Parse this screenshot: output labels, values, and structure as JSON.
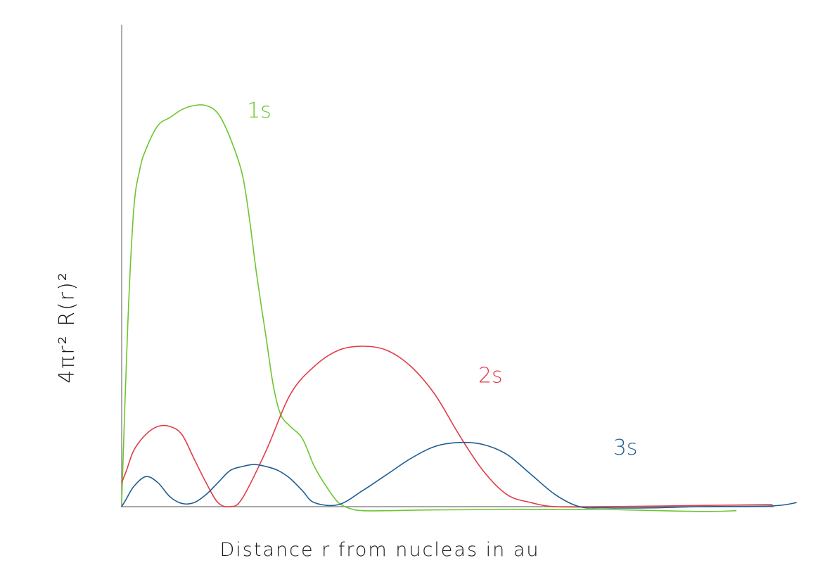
{
  "chart_data": {
    "type": "line",
    "title": "",
    "xlabel": "Distance r from nucleas in au",
    "ylabel": "4πr² R(r)²",
    "xlim": [
      0,
      28
    ],
    "ylim": [
      0,
      1.0
    ],
    "grid": false,
    "legend": "none",
    "series": [
      {
        "name": "1s",
        "color": "#6cc62e",
        "x": [
          0,
          0.25,
          0.5,
          0.75,
          1.0,
          1.5,
          2.0,
          2.5,
          3.0,
          3.5,
          4.0,
          4.5,
          5.0,
          5.3,
          5.6,
          6.0,
          6.3,
          6.6,
          7.0,
          7.5,
          8.0,
          8.5,
          9.0,
          9.5,
          10.0,
          11.0,
          13.0,
          16.0,
          20.0,
          24.0,
          25.5
        ],
        "y": [
          0.01,
          0.45,
          0.74,
          0.84,
          0.89,
          0.95,
          0.97,
          0.99,
          1.0,
          1.0,
          0.98,
          0.92,
          0.83,
          0.72,
          0.58,
          0.42,
          0.3,
          0.23,
          0.2,
          0.17,
          0.1,
          0.05,
          0.01,
          -0.005,
          -0.01,
          -0.01,
          -0.008,
          -0.007,
          -0.007,
          -0.012,
          -0.01
        ]
      },
      {
        "name": "2s",
        "color": "#e23b4a",
        "x": [
          0,
          0.2,
          0.5,
          1.0,
          1.5,
          2.0,
          2.5,
          3.0,
          3.5,
          4.0,
          4.5,
          5.0,
          6.0,
          7.0,
          8.0,
          9.0,
          10.0,
          11.0,
          12.0,
          13.0,
          14.0,
          15.0,
          16.0,
          17.0,
          18.0,
          20.0,
          24.0,
          27.0
        ],
        "y": [
          0.06,
          0.09,
          0.14,
          0.18,
          0.2,
          0.2,
          0.18,
          0.12,
          0.06,
          0.01,
          0.0,
          0.02,
          0.14,
          0.28,
          0.35,
          0.39,
          0.4,
          0.39,
          0.35,
          0.28,
          0.18,
          0.09,
          0.03,
          0.01,
          0.0,
          0.0,
          0.003,
          0.005
        ]
      },
      {
        "name": "3s",
        "color": "#1f5e92",
        "x": [
          0,
          0.2,
          0.5,
          1.0,
          1.5,
          2.0,
          2.5,
          3.0,
          3.5,
          4.0,
          4.5,
          5.0,
          5.5,
          6.0,
          6.5,
          7.0,
          7.5,
          8.0,
          9.0,
          10.0,
          11.0,
          12.0,
          13.0,
          14.0,
          15.0,
          16.0,
          17.0,
          18.0,
          19.0,
          20.0,
          22.0,
          24.0,
          27.0,
          28.0
        ],
        "y": [
          0.0,
          0.02,
          0.05,
          0.075,
          0.06,
          0.025,
          0.008,
          0.01,
          0.03,
          0.06,
          0.09,
          0.1,
          0.105,
          0.1,
          0.09,
          0.07,
          0.04,
          0.01,
          0.005,
          0.04,
          0.08,
          0.12,
          0.15,
          0.16,
          0.155,
          0.13,
          0.08,
          0.03,
          0.0,
          -0.003,
          -0.003,
          0.0,
          0.002,
          0.01
        ]
      }
    ],
    "annotations": [
      {
        "text": "1s",
        "x": 5.2,
        "y": 0.97,
        "color": "#6cc62e"
      },
      {
        "text": "2s",
        "x": 14.8,
        "y": 0.31,
        "color": "#e23b4a"
      },
      {
        "text": "3s",
        "x": 20.4,
        "y": 0.13,
        "color": "#1f5e92"
      }
    ]
  }
}
